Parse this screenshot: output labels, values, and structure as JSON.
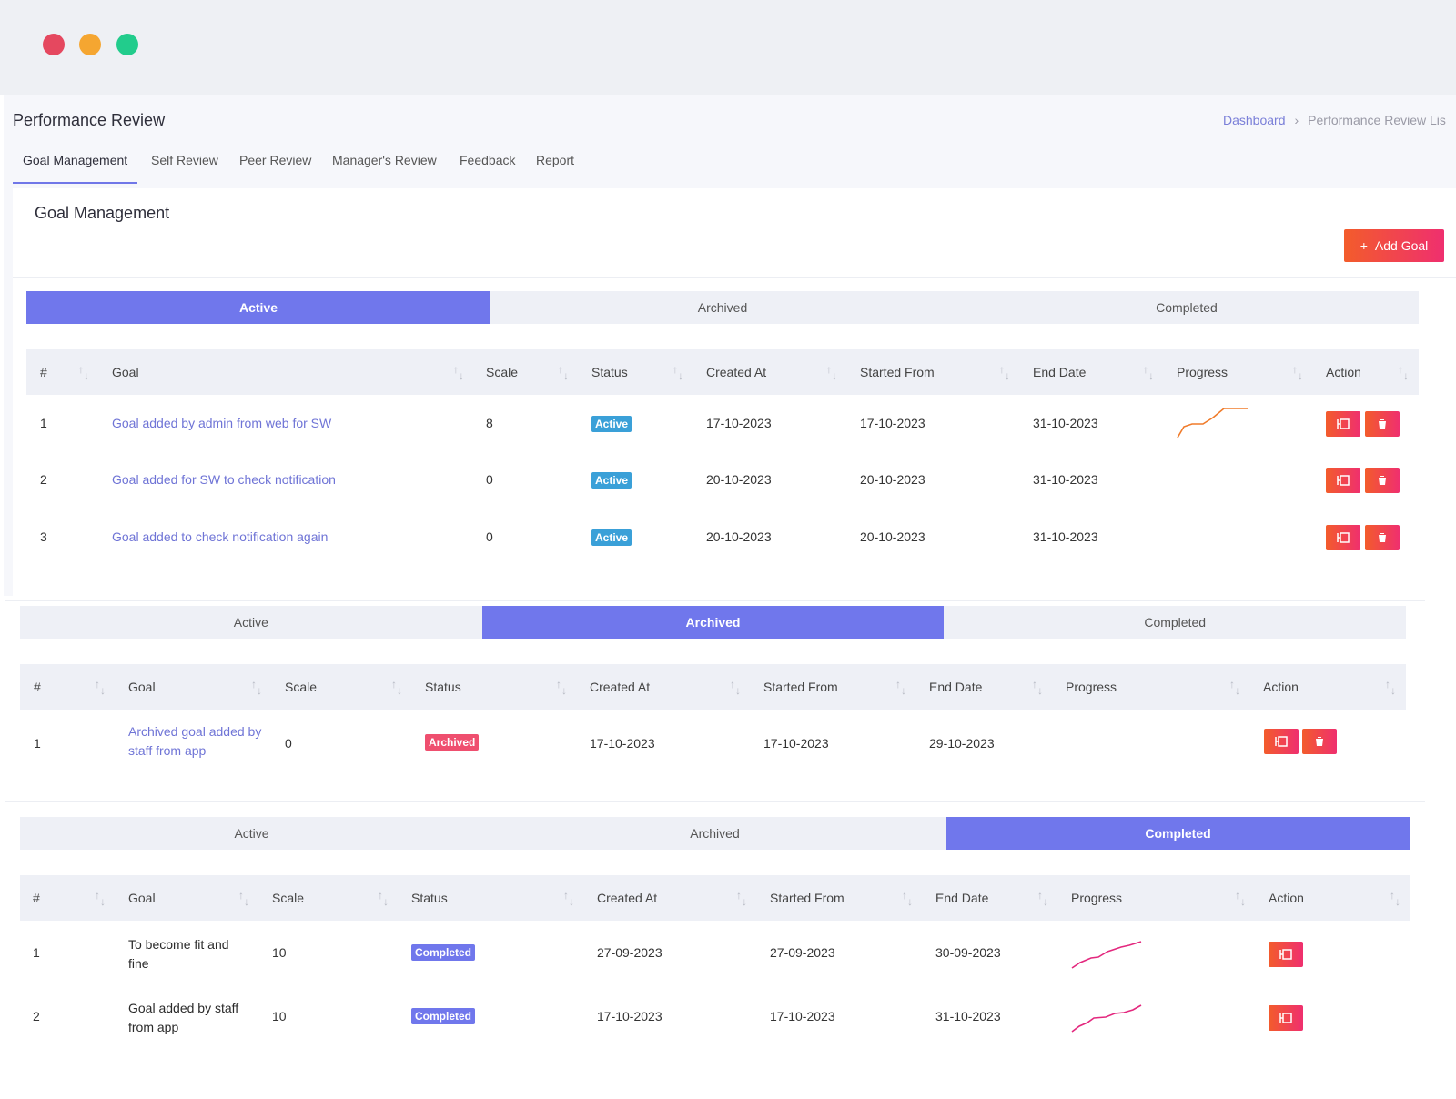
{
  "colors": {
    "accent": "#7077ec",
    "action_gradient_start": "#f35c2b",
    "action_gradient_end": "#ef2f6f",
    "link": "#6f74d6",
    "active_badge": "#3aa0d8",
    "archived_badge": "#ef4f6f",
    "completed_badge": "#7077ec"
  },
  "window": {
    "controls": [
      "close",
      "minimize",
      "maximize"
    ]
  },
  "header": {
    "title": "Performance Review",
    "breadcrumb": {
      "link": "Dashboard",
      "separator": "›",
      "current": "Performance Review Lis"
    }
  },
  "tabs": [
    "Goal Management",
    "Self Review",
    "Peer Review",
    "Manager's Review",
    "Feedback",
    "Report"
  ],
  "card": {
    "title": "Goal Management",
    "add_button": "Add Goal",
    "add_icon": "+"
  },
  "columns": [
    "#",
    "Goal",
    "Scale",
    "Status",
    "Created At",
    "Started From",
    "End Date",
    "Progress",
    "Action"
  ],
  "segments": [
    "Active",
    "Archived",
    "Completed"
  ],
  "panels": {
    "active": {
      "selected": "Active",
      "rows": [
        {
          "no": "1",
          "goal": "Goal added by admin from web for SW",
          "scale": "8",
          "status": "Active",
          "created": "17-10-2023",
          "started": "17-10-2023",
          "end": "31-10-2023",
          "progress_trend": "rising-orange",
          "actions": [
            "edit",
            "delete"
          ]
        },
        {
          "no": "2",
          "goal": "Goal added for SW to check notification",
          "scale": "0",
          "status": "Active",
          "created": "20-10-2023",
          "started": "20-10-2023",
          "end": "31-10-2023",
          "progress_trend": "none",
          "actions": [
            "edit",
            "delete"
          ]
        },
        {
          "no": "3",
          "goal": "Goal added to check notification again",
          "scale": "0",
          "status": "Active",
          "created": "20-10-2023",
          "started": "20-10-2023",
          "end": "31-10-2023",
          "progress_trend": "none",
          "actions": [
            "edit",
            "delete"
          ]
        }
      ]
    },
    "archived": {
      "selected": "Archived",
      "rows": [
        {
          "no": "1",
          "goal": "Archived goal added by staff from app",
          "scale": "0",
          "status": "Archived",
          "created": "17-10-2023",
          "started": "17-10-2023",
          "end": "29-10-2023",
          "progress_trend": "none",
          "actions": [
            "edit",
            "delete"
          ]
        }
      ]
    },
    "completed": {
      "selected": "Completed",
      "rows": [
        {
          "no": "1",
          "goal": "To become fit and fine",
          "scale": "10",
          "status": "Completed",
          "created": "27-09-2023",
          "started": "27-09-2023",
          "end": "30-09-2023",
          "progress_trend": "rising-pink",
          "actions": [
            "edit"
          ]
        },
        {
          "no": "2",
          "goal": "Goal added by staff from app",
          "scale": "10",
          "status": "Completed",
          "created": "17-10-2023",
          "started": "17-10-2023",
          "end": "31-10-2023",
          "progress_trend": "rising-pink",
          "actions": [
            "edit"
          ]
        }
      ]
    }
  },
  "icons": {
    "edit": "edit-icon",
    "delete": "trash-icon",
    "sort": "sort-icon"
  }
}
